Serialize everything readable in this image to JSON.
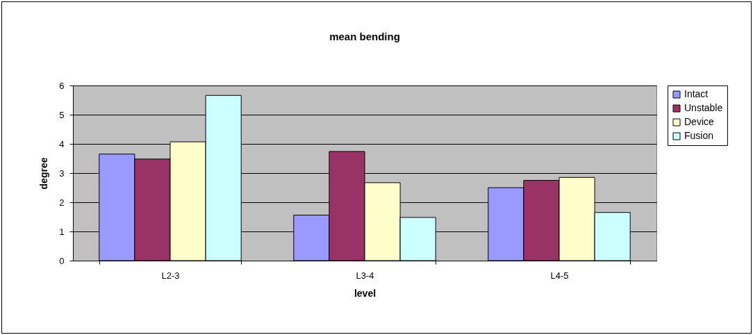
{
  "chart_data": {
    "type": "bar",
    "title": "mean bending",
    "xlabel": "level",
    "ylabel": "degree",
    "categories": [
      "L2-3",
      "L3-4",
      "L4-5"
    ],
    "series": [
      {
        "name": "Intact",
        "color": "#9999ff",
        "values": [
          3.65,
          1.56,
          2.5
        ]
      },
      {
        "name": "Unstable",
        "color": "#993366",
        "values": [
          3.48,
          3.74,
          2.75
        ]
      },
      {
        "name": "Device",
        "color": "#ffffcc",
        "values": [
          4.07,
          2.67,
          2.85
        ]
      },
      {
        "name": "Fusion",
        "color": "#ccffff",
        "values": [
          5.66,
          1.48,
          1.65
        ]
      }
    ],
    "ylim": [
      0,
      6
    ],
    "yticks": [
      0,
      1,
      2,
      3,
      4,
      5,
      6
    ],
    "grid": "y",
    "legend": "right"
  }
}
